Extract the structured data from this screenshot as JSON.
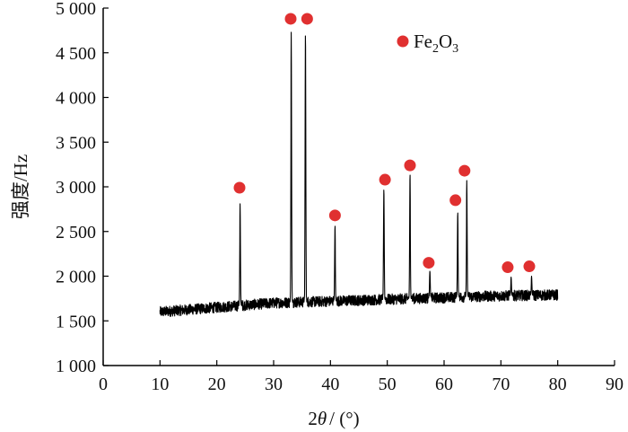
{
  "chart_data": {
    "type": "line",
    "title": "",
    "xlabel_parts": [
      "2",
      "θ",
      "/ (°)"
    ],
    "ylabel": "强度/Hz",
    "xlim": [
      0,
      90
    ],
    "ylim": [
      1000,
      5000
    ],
    "x_ticks": [
      0,
      10,
      20,
      30,
      40,
      50,
      60,
      70,
      80,
      90
    ],
    "y_ticks": [
      1000,
      1500,
      2000,
      2500,
      3000,
      3500,
      4000,
      4500,
      5000
    ],
    "x_tick_labels": [
      "0",
      "10",
      "20",
      "30",
      "40",
      "50",
      "60",
      "70",
      "80",
      "90"
    ],
    "y_tick_labels": [
      "1 000",
      "1 500",
      "2 000",
      "2 500",
      "3 000",
      "3 500",
      "4 000",
      "4 500",
      "5 000"
    ],
    "grid": false,
    "legend": {
      "position": "top-right",
      "label": "Fe2O3",
      "label_parts": {
        "base": "Fe",
        "sub1": "2",
        "mid": "O",
        "sub2": "3"
      },
      "marker": "red-dot"
    },
    "series": [
      {
        "x_range": [
          10,
          80
        ],
        "baseline": [
          [
            10,
            1600
          ],
          [
            20,
            1650
          ],
          [
            30,
            1700
          ],
          [
            40,
            1720
          ],
          [
            50,
            1740
          ],
          [
            60,
            1760
          ],
          [
            70,
            1780
          ],
          [
            80,
            1790
          ]
        ],
        "noise_amplitude": 60,
        "peaks": [
          {
            "x": 24.1,
            "y": 2810
          },
          {
            "x": 33.1,
            "y": 4730
          },
          {
            "x": 35.6,
            "y": 4730
          },
          {
            "x": 40.8,
            "y": 2570
          },
          {
            "x": 49.4,
            "y": 2980
          },
          {
            "x": 54.0,
            "y": 3150
          },
          {
            "x": 57.5,
            "y": 2060
          },
          {
            "x": 62.4,
            "y": 2720
          },
          {
            "x": 64.0,
            "y": 3070
          },
          {
            "x": 71.8,
            "y": 1990
          },
          {
            "x": 75.4,
            "y": 2000
          }
        ],
        "color": "#000000"
      }
    ],
    "markers": [
      {
        "x": 24.0,
        "y": 2990
      },
      {
        "x": 33.0,
        "y": 4880
      },
      {
        "x": 35.9,
        "y": 4880
      },
      {
        "x": 40.8,
        "y": 2680
      },
      {
        "x": 49.6,
        "y": 3080
      },
      {
        "x": 54.0,
        "y": 3240
      },
      {
        "x": 57.3,
        "y": 2150
      },
      {
        "x": 62.0,
        "y": 2850
      },
      {
        "x": 63.6,
        "y": 3180
      },
      {
        "x": 71.2,
        "y": 2100
      },
      {
        "x": 75.0,
        "y": 2110
      }
    ],
    "colors": {
      "marker": "#e03030",
      "axis": "#000000",
      "line": "#000000"
    }
  }
}
